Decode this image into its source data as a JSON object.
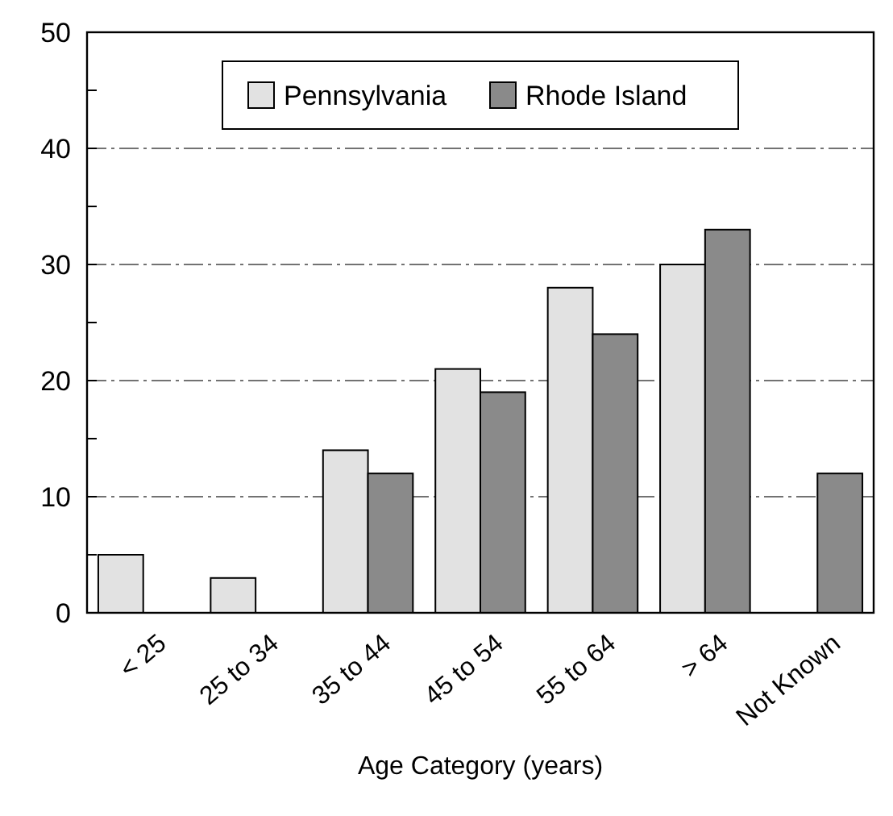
{
  "chart_data": {
    "type": "bar",
    "xlabel": "Age Category (years)",
    "categories": [
      "< 25",
      "25 to 34",
      "35 to 44",
      "45 to 54",
      "55 to 64",
      "> 64",
      "Not Known"
    ],
    "series": [
      {
        "name": "Pennsylvania",
        "color": "#e2e2e2",
        "values": [
          5,
          3,
          14,
          21,
          28,
          30,
          null
        ]
      },
      {
        "name": "Rhode Island",
        "color": "#8a8a8a",
        "values": [
          null,
          null,
          12,
          19,
          24,
          33,
          12
        ]
      }
    ],
    "ylim": [
      0,
      50
    ],
    "yticks": [
      0,
      {
        "value": 5,
        "label": null
      },
      10,
      {
        "value": 15,
        "label": null
      },
      20,
      {
        "value": 25,
        "label": null
      },
      30,
      {
        "value": 35,
        "label": null
      },
      40,
      {
        "value": 45,
        "label": null
      },
      50
    ],
    "grid": "y",
    "legend": "top",
    "line_style": "dashed"
  }
}
